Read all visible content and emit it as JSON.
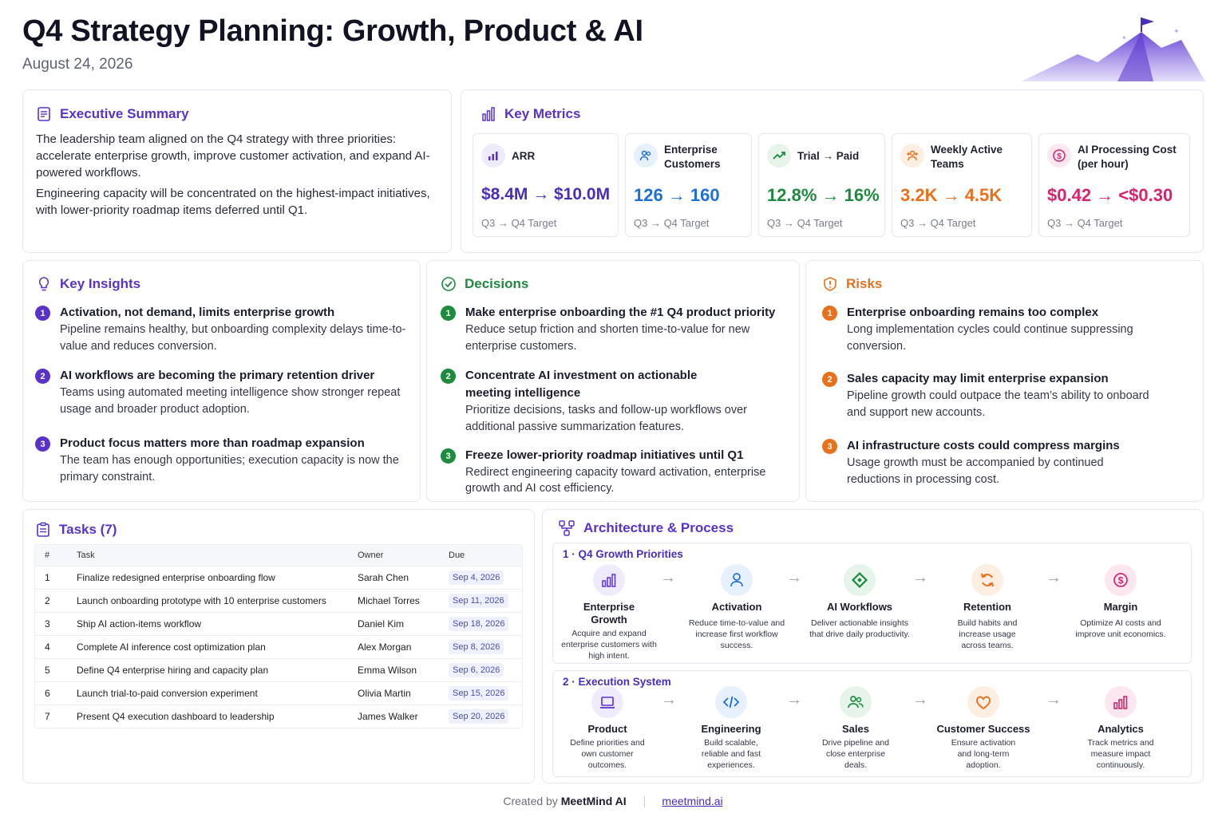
{
  "header": {
    "title": "Q4 Strategy Planning: Growth, Product & AI",
    "date": "August 24, 2026"
  },
  "summary": {
    "title": "Executive Summary",
    "p1": "The leadership team aligned on the Q4 strategy with three priorities: accelerate enterprise growth, improve customer activation, and expand AI-powered workflows.",
    "p2": "Engineering capacity will be concentrated on the highest-impact initiatives, with lower-priority roadmap items deferred until Q1."
  },
  "metrics": {
    "title": "Key Metrics",
    "items": [
      {
        "label": "ARR",
        "value": "$8.4M → $10.0M",
        "sub": "Q3 → Q4 Target",
        "color": "#4a2db8",
        "icon": "bar-chart-icon"
      },
      {
        "label": "Enterprise Customers",
        "value": "126 → 160",
        "sub": "Q3 → Q4 Target",
        "color": "#1e6fd9",
        "icon": "users-icon"
      },
      {
        "label": "Trial → Paid",
        "value": "12.8% → 16%",
        "sub": "Q3 → Q4 Target",
        "color": "#1e8a3e",
        "icon": "trend-up-icon"
      },
      {
        "label": "Weekly Active Teams",
        "value": "3.2K → 4.5K",
        "sub": "Q3 → Q4 Target",
        "color": "#e8711d",
        "icon": "team-icon"
      },
      {
        "label": "AI Processing Cost (per hour)",
        "value": "$0.42 → <$0.30",
        "sub": "Q3 → Q4 Target",
        "color": "#d6246e",
        "icon": "dollar-icon"
      }
    ]
  },
  "insights": {
    "title": "Key Insights",
    "items": [
      {
        "n": "1",
        "h": "Activation, not demand, limits enterprise growth",
        "b": "Pipeline remains healthy, but onboarding complexity delays time-to-value and reduces conversion."
      },
      {
        "n": "2",
        "h": "AI workflows are becoming the primary retention driver",
        "b": "Teams using automated meeting intelligence show stronger repeat usage and broader product adoption."
      },
      {
        "n": "3",
        "h": "Product focus matters more than roadmap expansion",
        "b": "The team has enough opportunities; execution capacity is now the primary constraint."
      }
    ]
  },
  "decisions": {
    "title": "Decisions",
    "items": [
      {
        "n": "1",
        "h": "Make enterprise onboarding the #1 Q4 product priority",
        "b": "Reduce setup friction and shorten time-to-value for new enterprise customers."
      },
      {
        "n": "2",
        "h": "Concentrate AI investment on actionable meeting intelligence",
        "b": "Prioritize decisions, tasks and follow-up workflows over additional passive summarization features."
      },
      {
        "n": "3",
        "h": "Freeze lower-priority roadmap initiatives until Q1",
        "b": "Redirect engineering capacity toward activation, enterprise growth and AI cost efficiency."
      }
    ]
  },
  "risks": {
    "title": "Risks",
    "items": [
      {
        "n": "1",
        "h": "Enterprise onboarding remains too complex",
        "b": "Long implementation cycles could continue suppressing conversion."
      },
      {
        "n": "2",
        "h": "Sales capacity may limit enterprise expansion",
        "b": "Pipeline growth could outpace the team’s ability to onboard and support new accounts."
      },
      {
        "n": "3",
        "h": "AI infrastructure costs could compress margins",
        "b": "Usage growth must be accompanied by continued reductions in processing cost."
      }
    ]
  },
  "tasks": {
    "title": "Tasks (7)",
    "columns": [
      "#",
      "Task",
      "Owner",
      "Due"
    ],
    "rows": [
      [
        "1",
        "Finalize redesigned enterprise onboarding flow",
        "Sarah Chen",
        "Sep 4, 2026"
      ],
      [
        "2",
        "Launch onboarding prototype with 10 enterprise customers",
        "Michael Torres",
        "Sep 11, 2026"
      ],
      [
        "3",
        "Ship AI action-items workflow",
        "Daniel Kim",
        "Sep 18, 2026"
      ],
      [
        "4",
        "Complete AI inference cost optimization plan",
        "Alex Morgan",
        "Sep 8, 2026"
      ],
      [
        "5",
        "Define Q4 enterprise hiring and capacity plan",
        "Emma Wilson",
        "Sep 6, 2026"
      ],
      [
        "6",
        "Launch trial-to-paid conversion experiment",
        "Olivia Martin",
        "Sep 15, 2026"
      ],
      [
        "7",
        "Present Q4 execution dashboard to leadership",
        "James Walker",
        "Sep 20, 2026"
      ]
    ]
  },
  "architecture": {
    "title": "Architecture & Process",
    "s1": {
      "title": "1 · Q4 Growth Priorities",
      "nodes": [
        {
          "t": "Enterprise Growth",
          "d": "Acquire and expand enterprise customers with high intent.",
          "icon": "bar-chart-icon"
        },
        {
          "t": "Activation",
          "d": "Reduce time-to-value and increase first workflow success.",
          "icon": "user-icon"
        },
        {
          "t": "AI Workflows",
          "d": "Deliver actionable insights that drive daily productivity.",
          "icon": "diamond-icon"
        },
        {
          "t": "Retention",
          "d": "Build habits and increase usage across teams.",
          "icon": "refresh-icon"
        },
        {
          "t": "Margin",
          "d": "Optimize AI costs and improve unit economics.",
          "icon": "dollar-icon"
        }
      ]
    },
    "s2": {
      "title": "2 · Execution System",
      "nodes": [
        {
          "t": "Product",
          "d": "Define priorities and own customer outcomes.",
          "icon": "laptop-icon"
        },
        {
          "t": "Engineering",
          "d": "Build scalable, reliable and fast experiences.",
          "icon": "code-icon"
        },
        {
          "t": "Sales",
          "d": "Drive pipeline and close enterprise deals.",
          "icon": "team-icon"
        },
        {
          "t": "Customer Success",
          "d": "Ensure activation and long-term adoption.",
          "icon": "heart-icon"
        },
        {
          "t": "Analytics",
          "d": "Track metrics and measure impact continuously.",
          "icon": "bar-chart-icon"
        }
      ]
    }
  },
  "footer": {
    "created": "Created by",
    "brand": "MeetMind AI",
    "link": "meetmind.ai"
  }
}
